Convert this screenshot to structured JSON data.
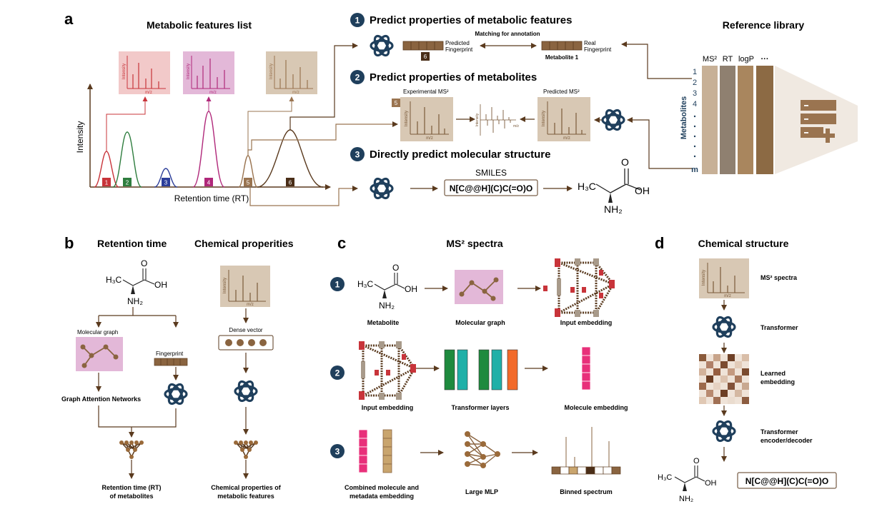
{
  "panel_letters": {
    "a": "a",
    "b": "b",
    "c": "c",
    "d": "d"
  },
  "panel_a": {
    "features_title": "Metabolic features list",
    "y_axis_label": "Intensity",
    "x_axis_label": "Retention time (RT)",
    "peak_labels": [
      "1",
      "2",
      "3",
      "4",
      "5",
      "6"
    ],
    "inset_y": "Intensity",
    "inset_x": "m/z",
    "steps": [
      {
        "num": "1",
        "text": "Predict properties of metabolic features"
      },
      {
        "num": "2",
        "text": "Predict properties of metabolites"
      },
      {
        "num": "3",
        "text": "Directly predict molecular structure"
      }
    ],
    "matching_label": "Matching for annotation",
    "predicted_fp_line1": "Predicted",
    "predicted_fp_line2": "Fingerprint",
    "real_fp_line1": "Real",
    "real_fp_line2": "Fingerprint",
    "fp_feature_num": "6",
    "metabolite1": "Metabolite 1",
    "experimental_ms2": "Experimental MS²",
    "predicted_ms2": "Predicted MS²",
    "exp_feature_num": "5",
    "smiles_label": "SMILES",
    "smiles": "N[C@@H](C)C(=O)O",
    "ref_title": "Reference library",
    "ref_columns": [
      "MS²",
      "RT",
      "logP",
      "···"
    ],
    "ref_rows_label": "Metabolites",
    "ref_rows": [
      "1",
      "2",
      "3",
      "4",
      "m"
    ]
  },
  "panel_b": {
    "rt_title": "Retention time",
    "chem_title": "Chemical properities",
    "molecular_graph": "Molecular graph",
    "fingerprint": "Fingerprint",
    "dense_vector": "Dense vector",
    "gat": "Graph Attention Networks",
    "rt_out_1": "Retention time (RT)",
    "rt_out_2": "of metabolites",
    "chem_out_1": "Chemical properties of",
    "chem_out_2": "metabolic features"
  },
  "panel_c": {
    "title": "MS² spectra",
    "row_nums": [
      "1",
      "2",
      "3"
    ],
    "metabolite": "Metabolite",
    "molecular_graph": "Molecular graph",
    "input_embedding": "Input embedding",
    "input_embedding_2": "Input embedding",
    "transformer_layers": "Transformer layers",
    "molecule_embedding": "Molecule embedding",
    "combined_1": "Combined molecule and",
    "combined_2": "metadata embedding",
    "large_mlp": "Large MLP",
    "binned_spectrum": "Binned spectrum"
  },
  "panel_d": {
    "title": "Chemical structure",
    "ms2_spectra": "MS² spectra",
    "transformer": "Transformer",
    "learned_1": "Learned",
    "learned_2": "embedding",
    "enc_dec_1": "Transformer",
    "enc_dec_2": "encoder/decoder",
    "smiles": "N[C@@H](C)C(=O)O"
  },
  "molecule": {
    "ch3": "H₃C",
    "oh": "OH",
    "nh2": "NH₂",
    "o": "O"
  },
  "colors": {
    "brown": "#5a3a1e",
    "tan": "#d8c8b4",
    "navy": "#1f3f5c",
    "peak1": "#c8343a",
    "peak2": "#2e7d3e",
    "peak3": "#2c3e9a",
    "peak4": "#b0287a",
    "peak5": "#9a7450",
    "peak6": "#5a3a1e"
  }
}
